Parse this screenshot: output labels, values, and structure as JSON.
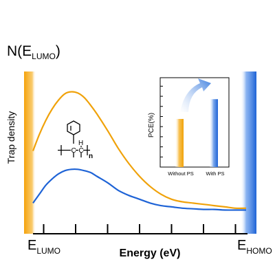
{
  "chart_data": {
    "type": "line",
    "title": "N(E_LUMO)",
    "title_main": "N(E",
    "title_sub": "LUMO",
    "title_close": ")",
    "ylabel": "Trap density",
    "xlabel": "Energy (eV)",
    "x_left_label": {
      "main": "E",
      "sub": "LUMO"
    },
    "x_right_label": {
      "main": "E",
      "sub": "HOMO"
    },
    "xlim": [
      0,
      1
    ],
    "ylim": [
      0,
      1
    ],
    "x_ticks": [
      0.05,
      0.2,
      0.35,
      0.5,
      0.65,
      0.8,
      0.95
    ],
    "grid": false,
    "series": [
      {
        "color": "#F0A20A",
        "x": [
          0,
          0.03,
          0.06,
          0.09,
          0.12,
          0.15,
          0.18,
          0.21,
          0.24,
          0.27,
          0.3,
          0.35,
          0.4,
          0.45,
          0.5,
          0.55,
          0.6,
          0.65,
          0.7,
          0.75,
          0.8,
          0.85,
          0.9,
          0.95,
          1.0
        ],
        "y": [
          0.5,
          0.63,
          0.74,
          0.83,
          0.9,
          0.95,
          0.965,
          0.955,
          0.92,
          0.86,
          0.79,
          0.66,
          0.52,
          0.4,
          0.3,
          0.22,
          0.16,
          0.12,
          0.1,
          0.09,
          0.08,
          0.07,
          0.06,
          0.05,
          0.05
        ]
      },
      {
        "color": "#1E63D6",
        "x": [
          0,
          0.03,
          0.06,
          0.09,
          0.12,
          0.15,
          0.18,
          0.21,
          0.24,
          0.27,
          0.3,
          0.35,
          0.4,
          0.45,
          0.5,
          0.55,
          0.6,
          0.65,
          0.7,
          0.75,
          0.8,
          0.85,
          0.9,
          0.95,
          1.0
        ],
        "y": [
          0.09,
          0.16,
          0.23,
          0.28,
          0.32,
          0.345,
          0.355,
          0.355,
          0.345,
          0.33,
          0.3,
          0.25,
          0.19,
          0.15,
          0.12,
          0.09,
          0.07,
          0.06,
          0.05,
          0.045,
          0.04,
          0.04,
          0.035,
          0.035,
          0.035
        ]
      }
    ],
    "inset": {
      "type": "bar",
      "ylabel": "PCE(%)",
      "categories": [
        "Without PS",
        "With PS"
      ],
      "values": [
        0.56,
        0.79
      ],
      "ylim": [
        0,
        1
      ],
      "colors": {
        "orange": "#F0A20A",
        "blue": "#1E63D6"
      }
    },
    "molecule": {
      "atom_H": "H",
      "atom_C": "C",
      "subscript": "n"
    }
  }
}
